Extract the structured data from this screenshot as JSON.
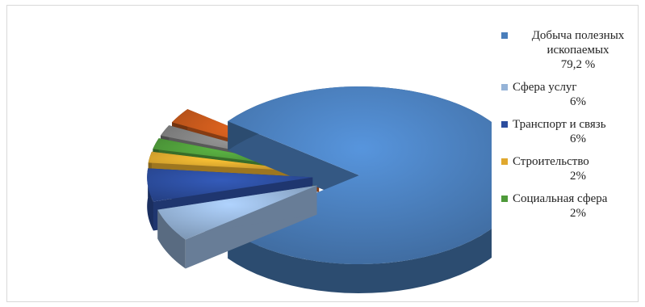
{
  "chart_data": {
    "type": "pie",
    "style": "3d-exploded",
    "legend_position": "right",
    "slices": [
      {
        "name": "Добыча полезных ископаемых",
        "value": 79.2,
        "label": "79,2 %",
        "color": "#4a7ebb"
      },
      {
        "name": "Сфера услуг",
        "value": 6,
        "label": "6%",
        "color": "#95b3d7"
      },
      {
        "name": "Транспорт и связь",
        "value": 6,
        "label": "6%",
        "color": "#2c4d9e"
      },
      {
        "name": "Строительство",
        "value": 2,
        "label": "2%",
        "color": "#e0a82e"
      },
      {
        "name": "Социальная сфера",
        "value": 2,
        "label": "2%",
        "color": "#4e9a3a"
      },
      {
        "name": "",
        "value": 2,
        "label": "",
        "color": "#7f7f7f"
      },
      {
        "name": "",
        "value": 2.8,
        "label": "",
        "color": "#c0561b"
      }
    ]
  }
}
